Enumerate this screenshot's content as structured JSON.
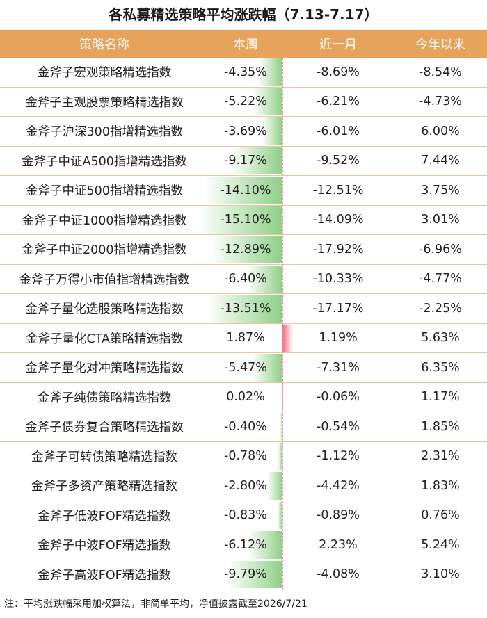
{
  "colors": {
    "header_bg": "#e7a35b",
    "negative_bar": "#8fcf86",
    "positive_bar": "#f5687f"
  },
  "title": "各私募精选策略平均涨跌幅（7.13-7.17）",
  "columns": {
    "name": "策略名称",
    "week": "本周",
    "month": "近一月",
    "ytd": "今年以来"
  },
  "footnote": "注：平均涨跌幅采用加权算法，非简单平均，净值披露截至2026/7/21",
  "chart_data": {
    "type": "table",
    "title": "各私募精选策略平均涨跌幅（7.13-7.17）",
    "bar_column": "本周",
    "rows": [
      {
        "name": "金斧子宏观策略精选指数",
        "week": "-4.35%",
        "week_value": -4.35,
        "month": "-8.69%",
        "ytd": "-8.54%"
      },
      {
        "name": "金斧子主观股票策略精选指数",
        "week": "-5.22%",
        "week_value": -5.22,
        "month": "-6.21%",
        "ytd": "-4.73%"
      },
      {
        "name": "金斧子沪深300指增精选指数",
        "week": "-3.69%",
        "week_value": -3.69,
        "month": "-6.01%",
        "ytd": "6.00%"
      },
      {
        "name": "金斧子中证A500指增精选指数",
        "week": "-9.17%",
        "week_value": -9.17,
        "month": "-9.52%",
        "ytd": "7.44%"
      },
      {
        "name": "金斧子中证500指增精选指数",
        "week": "-14.10%",
        "week_value": -14.1,
        "month": "-12.51%",
        "ytd": "3.75%"
      },
      {
        "name": "金斧子中证1000指增精选指数",
        "week": "-15.10%",
        "week_value": -15.1,
        "month": "-14.09%",
        "ytd": "3.01%"
      },
      {
        "name": "金斧子中证2000指增精选指数",
        "week": "-12.89%",
        "week_value": -12.89,
        "month": "-17.92%",
        "ytd": "-6.96%"
      },
      {
        "name": "金斧子万得小市值指增精选指数",
        "week": "-6.40%",
        "week_value": -6.4,
        "month": "-10.33%",
        "ytd": "-4.77%"
      },
      {
        "name": "金斧子量化选股策略精选指数",
        "week": "-13.51%",
        "week_value": -13.51,
        "month": "-17.17%",
        "ytd": "-2.25%"
      },
      {
        "name": "金斧子量化CTA策略精选指数",
        "week": "1.87%",
        "week_value": 1.87,
        "month": "1.19%",
        "ytd": "5.63%"
      },
      {
        "name": "金斧子量化对冲策略精选指数",
        "week": "-5.47%",
        "week_value": -5.47,
        "month": "-7.31%",
        "ytd": "6.35%"
      },
      {
        "name": "金斧子纯债策略精选指数",
        "week": "0.02%",
        "week_value": 0.02,
        "month": "-0.06%",
        "ytd": "1.17%"
      },
      {
        "name": "金斧子债券复合策略精选指数",
        "week": "-0.40%",
        "week_value": -0.4,
        "month": "-0.54%",
        "ytd": "1.85%"
      },
      {
        "name": "金斧子可转债策略精选指数",
        "week": "-0.78%",
        "week_value": -0.78,
        "month": "-1.12%",
        "ytd": "2.31%"
      },
      {
        "name": "金斧子多资产策略精选指数",
        "week": "-2.80%",
        "week_value": -2.8,
        "month": "-4.42%",
        "ytd": "1.83%"
      },
      {
        "name": "金斧子低波FOF精选指数",
        "week": "-0.83%",
        "week_value": -0.83,
        "month": "-0.89%",
        "ytd": "0.76%"
      },
      {
        "name": "金斧子中波FOF精选指数",
        "week": "-6.12%",
        "week_value": -6.12,
        "month": "2.23%",
        "ytd": "5.24%"
      },
      {
        "name": "金斧子高波FOF精选指数",
        "week": "-9.79%",
        "week_value": -9.79,
        "month": "-4.08%",
        "ytd": "3.10%"
      }
    ]
  }
}
